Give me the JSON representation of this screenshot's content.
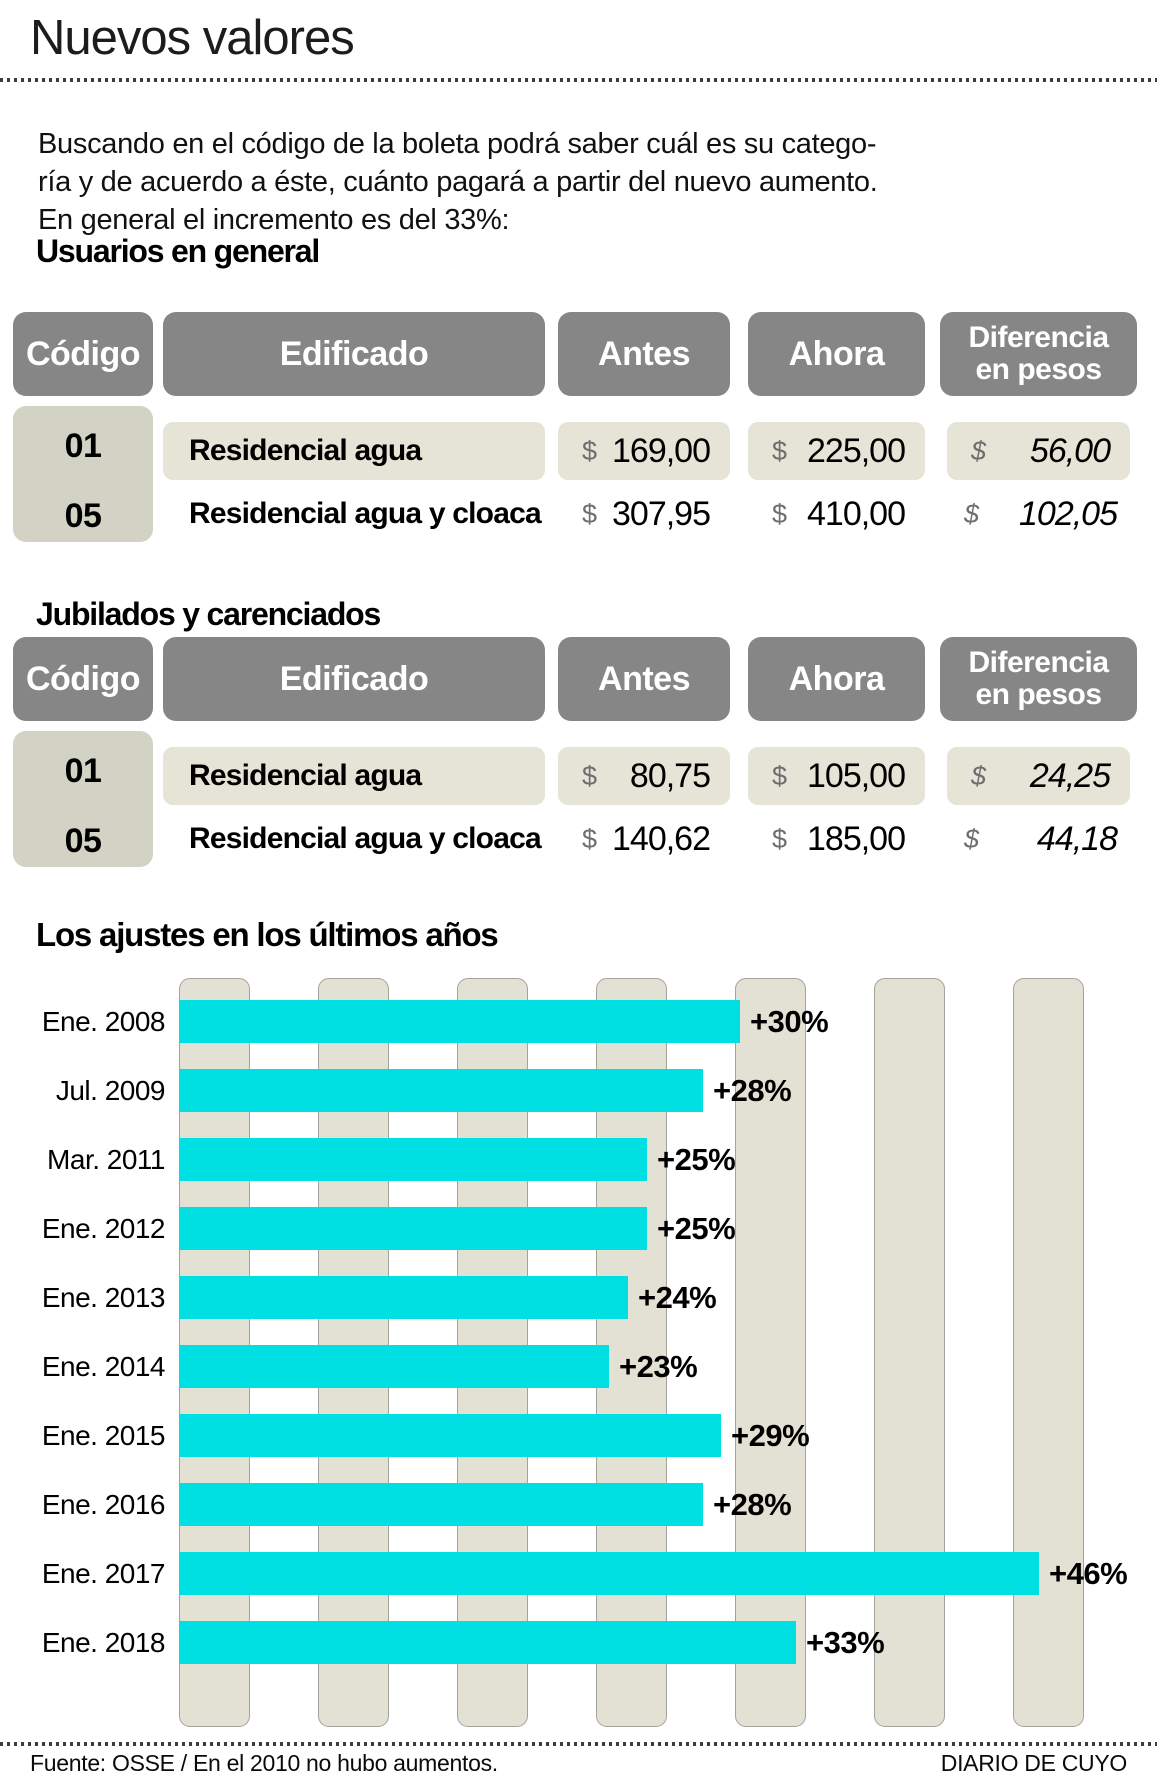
{
  "title": "Nuevos valores",
  "intro": {
    "lines": [
      "Buscando en el código de la boleta podrá saber cuál es su catego-",
      "ría y de acuerdo a éste, cuánto pagará a partir del nuevo aumento.",
      "En general el incremento es del 33%:"
    ]
  },
  "currency_symbol": "$",
  "tables": [
    {
      "heading": "Usuarios en general",
      "headers": {
        "codigo": "Código",
        "edificado": "Edificado",
        "antes": "Antes",
        "ahora": "Ahora",
        "diferencia_line1": "Diferencia",
        "diferencia_line2": "en pesos"
      },
      "rows": [
        {
          "codigo": "01",
          "edificado": "Residencial agua",
          "antes": "169,00",
          "ahora": "225,00",
          "diferencia": "56,00"
        },
        {
          "codigo": "05",
          "edificado": "Residencial agua y cloaca",
          "antes": "307,95",
          "ahora": "410,00",
          "diferencia": "102,05"
        }
      ]
    },
    {
      "heading": "Jubilados y carenciados",
      "headers": {
        "codigo": "Código",
        "edificado": "Edificado",
        "antes": "Antes",
        "ahora": "Ahora",
        "diferencia_line1": "Diferencia",
        "diferencia_line2": "en pesos"
      },
      "rows": [
        {
          "codigo": "01",
          "edificado": "Residencial agua",
          "antes": "80,75",
          "ahora": "105,00",
          "diferencia": "24,25"
        },
        {
          "codigo": "05",
          "edificado": "Residencial agua y cloaca",
          "antes": "140,62",
          "ahora": "185,00",
          "diferencia": "44,18"
        }
      ]
    }
  ],
  "chart_data": {
    "type": "bar",
    "orientation": "horizontal",
    "title": "Los ajustes en los últimos años",
    "categories": [
      "Ene. 2008",
      "Jul. 2009",
      "Mar. 2011",
      "Ene. 2012",
      "Ene. 2013",
      "Ene. 2014",
      "Ene. 2015",
      "Ene. 2016",
      "Ene. 2017",
      "Ene. 2018"
    ],
    "values": [
      30,
      28,
      25,
      25,
      24,
      23,
      29,
      28,
      46,
      33
    ],
    "value_labels": [
      "+30%",
      "+28%",
      "+25%",
      "+25%",
      "+24%",
      "+23%",
      "+29%",
      "+28%",
      "+46%",
      "+33%"
    ],
    "unit": "%",
    "xlim": [
      0,
      49
    ],
    "legend": "none",
    "grid": "decorative-vertical-bands",
    "bar_color": "#00dfe1",
    "band_color": "#e2e1d3"
  },
  "footer": {
    "source": "Fuente: OSSE / En el 2010 no hubo aumentos.",
    "credit": "DIARIO DE CUYO"
  },
  "colors": {
    "header_gray": "#868686",
    "row_beige": "#e5e4d7",
    "codigo_beige": "#d2d2c5",
    "band_beige": "#e2e1d3",
    "bar_cyan": "#00dfe1",
    "currency_gray": "#6e6e6e"
  }
}
